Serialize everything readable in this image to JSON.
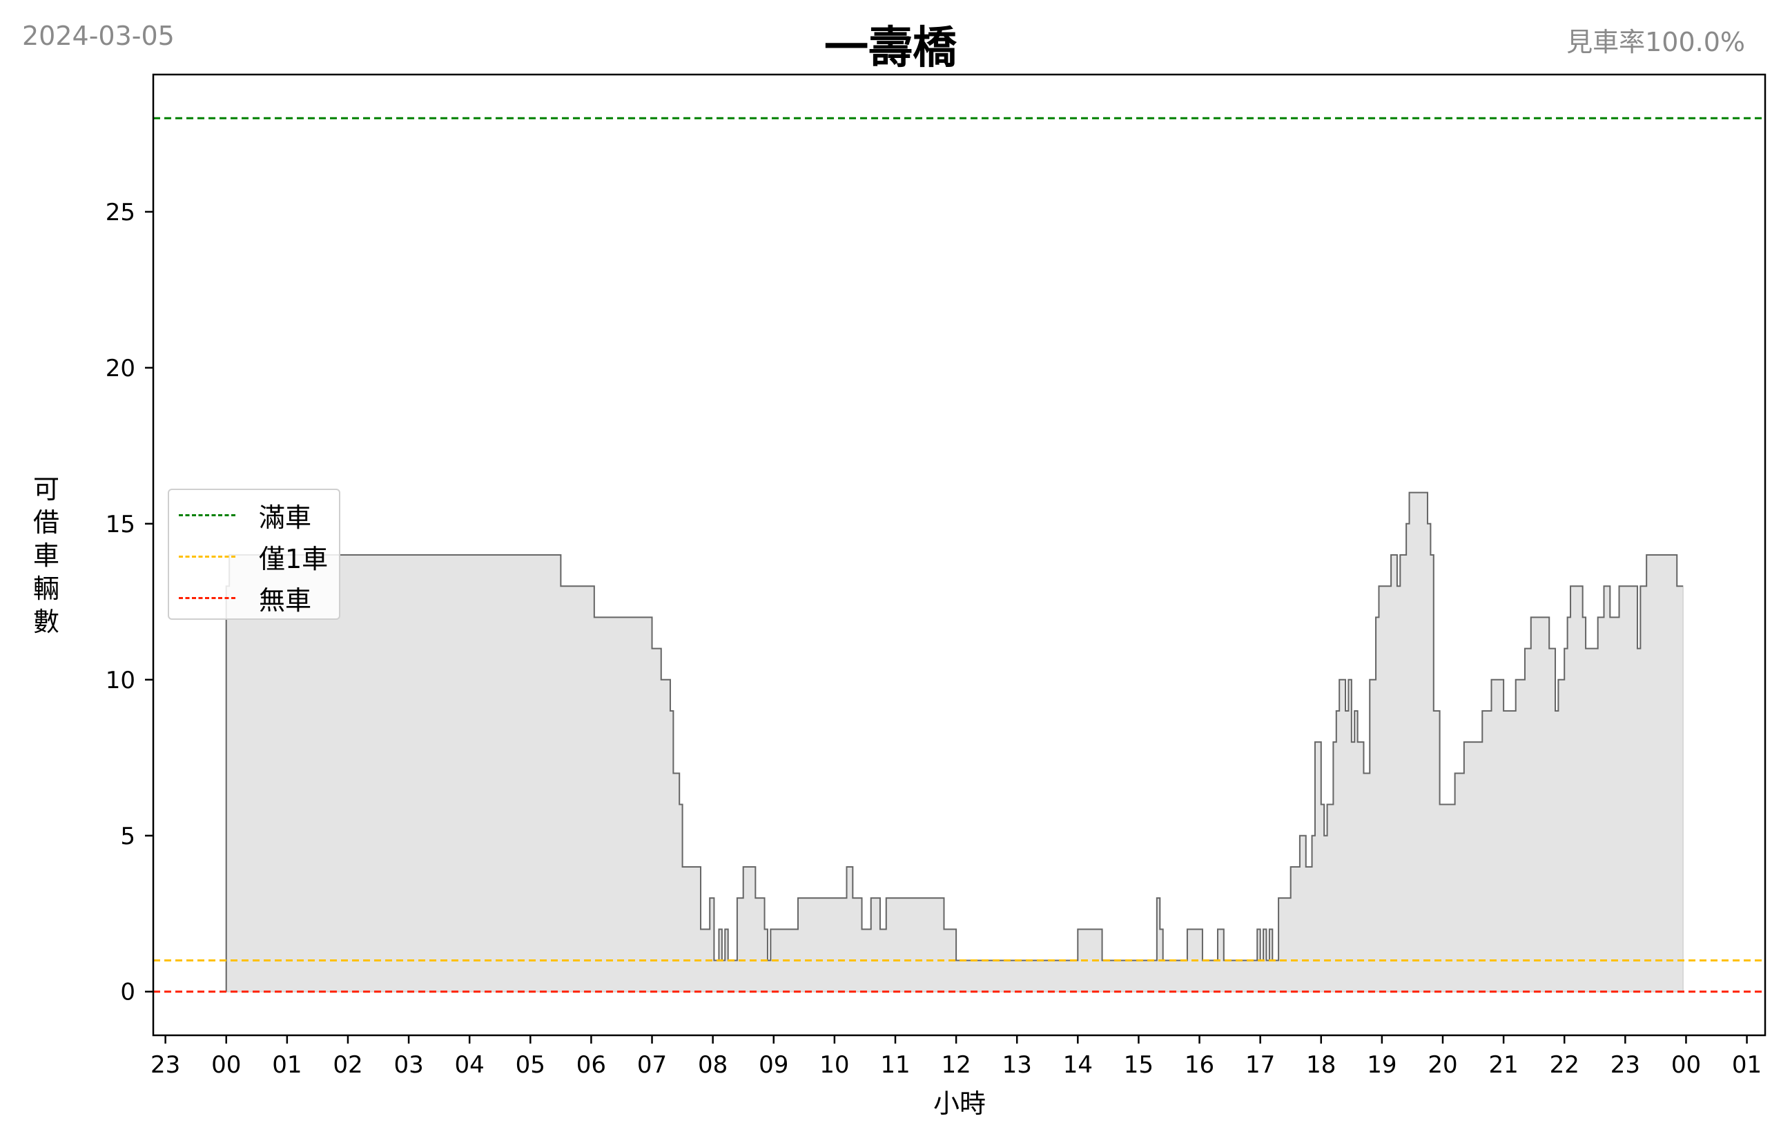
{
  "header": {
    "date": "2024-03-05",
    "title": "一壽橋",
    "rate": "見車率100.0%"
  },
  "chart_data": {
    "type": "area",
    "title": "一壽橋",
    "xlabel": "小時",
    "ylabel": "可借車輛數",
    "ylim": [
      -1.4,
      29.4
    ],
    "xlim": [
      -1.2,
      25.3
    ],
    "yticks": [
      0,
      5,
      10,
      15,
      20,
      25
    ],
    "xticks": [
      -1,
      0,
      1,
      2,
      3,
      4,
      5,
      6,
      7,
      8,
      9,
      10,
      11,
      12,
      13,
      14,
      15,
      16,
      17,
      18,
      19,
      20,
      21,
      22,
      23,
      24,
      25
    ],
    "xtick_labels": [
      "23",
      "00",
      "01",
      "02",
      "03",
      "04",
      "05",
      "06",
      "07",
      "08",
      "09",
      "10",
      "11",
      "12",
      "13",
      "14",
      "15",
      "16",
      "17",
      "18",
      "19",
      "20",
      "21",
      "22",
      "23",
      "00",
      "01"
    ],
    "grid": false,
    "legend_position": "center-left",
    "reference_lines": [
      {
        "name": "滿車",
        "value": 28,
        "color": "#008000",
        "style": "dashed"
      },
      {
        "name": "僅1車",
        "value": 1,
        "color": "#ffc000",
        "style": "dashed"
      },
      {
        "name": "無車",
        "value": 0,
        "color": "#ff2000",
        "style": "dashed"
      }
    ],
    "series": [
      {
        "line_color": "#666666",
        "fill_color": "#e4e4e4",
        "step": true,
        "points": [
          [
            0,
            13
          ],
          [
            0.05,
            14
          ],
          [
            5.5,
            13
          ],
          [
            6.05,
            12
          ],
          [
            7.0,
            11
          ],
          [
            7.15,
            10
          ],
          [
            7.3,
            9
          ],
          [
            7.35,
            7
          ],
          [
            7.45,
            6
          ],
          [
            7.5,
            4
          ],
          [
            7.8,
            2
          ],
          [
            7.95,
            3
          ],
          [
            8.02,
            1
          ],
          [
            8.1,
            2
          ],
          [
            8.15,
            1
          ],
          [
            8.2,
            2
          ],
          [
            8.25,
            1
          ],
          [
            8.4,
            3
          ],
          [
            8.5,
            4
          ],
          [
            8.7,
            3
          ],
          [
            8.85,
            2
          ],
          [
            8.9,
            1
          ],
          [
            8.95,
            2
          ],
          [
            9.4,
            3
          ],
          [
            10.2,
            4
          ],
          [
            10.3,
            3
          ],
          [
            10.45,
            2
          ],
          [
            10.6,
            3
          ],
          [
            10.75,
            2
          ],
          [
            10.85,
            3
          ],
          [
            11.8,
            2
          ],
          [
            12.0,
            1
          ],
          [
            14.0,
            2
          ],
          [
            14.4,
            1
          ],
          [
            15.3,
            3
          ],
          [
            15.35,
            2
          ],
          [
            15.4,
            1
          ],
          [
            15.8,
            2
          ],
          [
            16.05,
            1
          ],
          [
            16.3,
            2
          ],
          [
            16.4,
            1
          ],
          [
            16.95,
            2
          ],
          [
            17.0,
            1
          ],
          [
            17.05,
            2
          ],
          [
            17.1,
            1
          ],
          [
            17.15,
            2
          ],
          [
            17.2,
            1
          ],
          [
            17.3,
            3
          ],
          [
            17.5,
            4
          ],
          [
            17.65,
            5
          ],
          [
            17.75,
            4
          ],
          [
            17.85,
            5
          ],
          [
            17.9,
            8
          ],
          [
            18.0,
            6
          ],
          [
            18.05,
            5
          ],
          [
            18.1,
            6
          ],
          [
            18.2,
            8
          ],
          [
            18.25,
            9
          ],
          [
            18.3,
            10
          ],
          [
            18.4,
            9
          ],
          [
            18.45,
            10
          ],
          [
            18.5,
            8
          ],
          [
            18.55,
            9
          ],
          [
            18.6,
            8
          ],
          [
            18.7,
            7
          ],
          [
            18.8,
            10
          ],
          [
            18.9,
            12
          ],
          [
            18.95,
            13
          ],
          [
            19.15,
            14
          ],
          [
            19.25,
            13
          ],
          [
            19.3,
            14
          ],
          [
            19.4,
            15
          ],
          [
            19.45,
            16
          ],
          [
            19.75,
            15
          ],
          [
            19.8,
            14
          ],
          [
            19.85,
            9
          ],
          [
            19.95,
            6
          ],
          [
            20.2,
            7
          ],
          [
            20.35,
            8
          ],
          [
            20.65,
            9
          ],
          [
            20.8,
            10
          ],
          [
            21.0,
            9
          ],
          [
            21.2,
            10
          ],
          [
            21.35,
            11
          ],
          [
            21.45,
            12
          ],
          [
            21.75,
            11
          ],
          [
            21.85,
            9
          ],
          [
            21.9,
            10
          ],
          [
            22.0,
            11
          ],
          [
            22.05,
            12
          ],
          [
            22.1,
            13
          ],
          [
            22.3,
            12
          ],
          [
            22.35,
            11
          ],
          [
            22.55,
            12
          ],
          [
            22.65,
            13
          ],
          [
            22.75,
            12
          ],
          [
            22.9,
            13
          ],
          [
            23.2,
            11
          ],
          [
            23.25,
            13
          ],
          [
            23.35,
            14
          ],
          [
            23.85,
            13
          ],
          [
            23.95,
            13
          ]
        ]
      }
    ]
  }
}
